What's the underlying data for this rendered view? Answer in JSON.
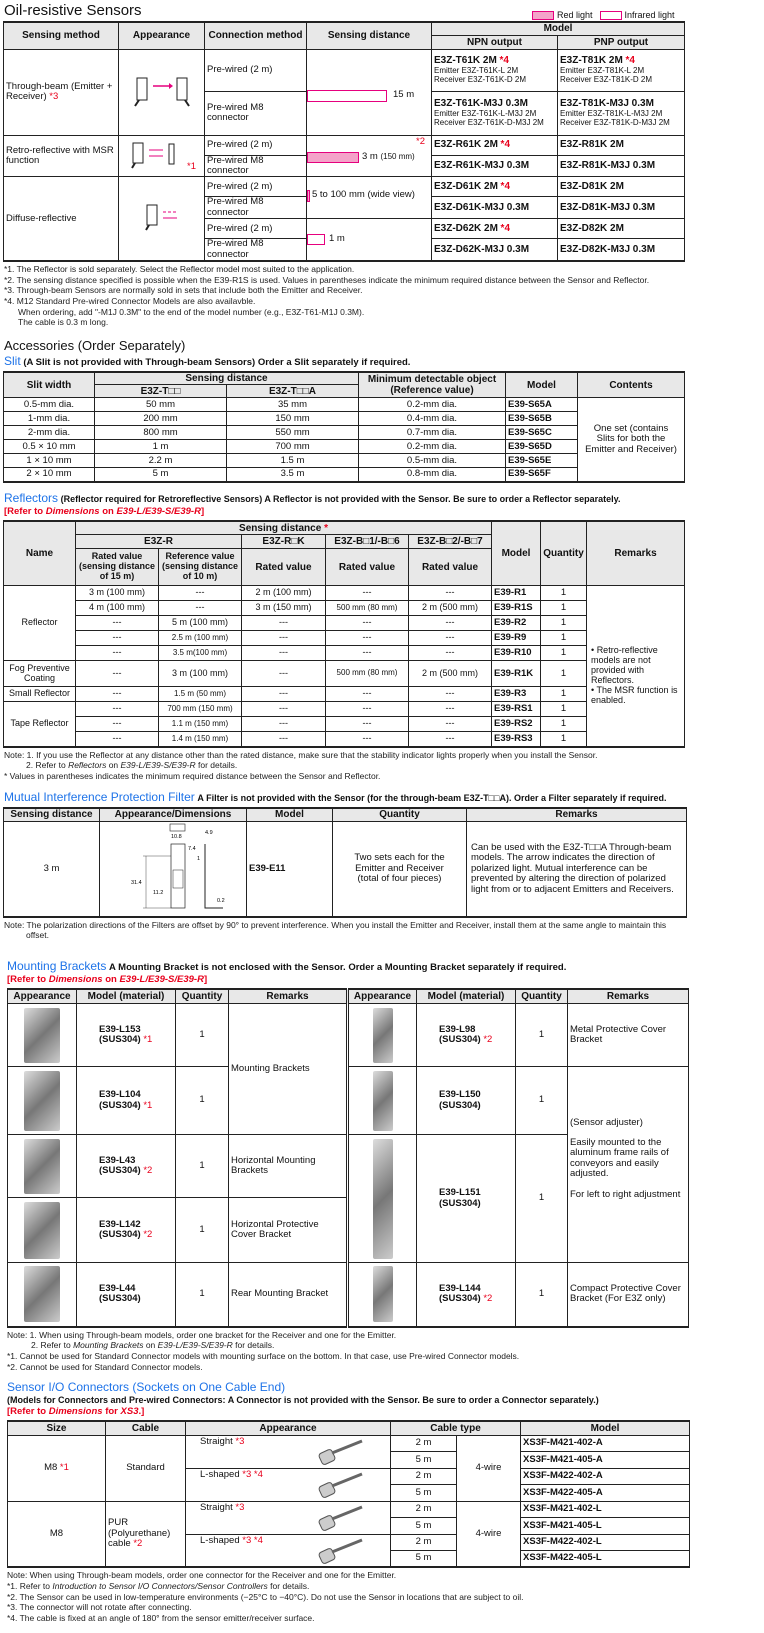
{
  "oil": {
    "title": "Oil-resistive Sensors",
    "legend": {
      "red": "Red light",
      "infrared": "Infrared light",
      "red_color": "#f4a3c9",
      "border_color": "#e6007e"
    },
    "headers": {
      "method": "Sensing method",
      "appearance": "Appearance",
      "connection": "Connection method",
      "distance": "Sensing distance",
      "model": "Model",
      "npn": "NPN output",
      "pnp": "PNP output"
    },
    "through": {
      "method": "Through-beam (Emitter + Receiver)",
      "mark": "*3",
      "c1": "Pre-wired (2 m)",
      "c2": "Pre-wired M8 connector",
      "dist": "15 m",
      "npn1": "E3Z-T61K 2M",
      "npn1m": "*4",
      "npn1e": "Emitter   E3Z-T61K-L 2M",
      "npn1r": "Receiver  E3Z-T61K-D 2M",
      "pnp1": "E3Z-T81K 2M",
      "pnp1m": "*4",
      "pnp1e": "Emitter   E3Z-T81K-L 2M",
      "pnp1r": "Receiver  E3Z-T81K-D 2M",
      "npn2": "E3Z-T61K-M3J 0.3M",
      "npn2e": "Emitter   E3Z-T61K-L-M3J 2M",
      "npn2r": "Receiver  E3Z-T61K-D-M3J 2M",
      "pnp2": "E3Z-T81K-M3J 0.3M",
      "pnp2e": "Emitter   E3Z-T81K-L-M3J 2M",
      "pnp2r": "Receiver  E3Z-T81K-D-M3J 2M"
    },
    "retro": {
      "method": "Retro-reflective with MSR function",
      "mark": "*1",
      "c1": "Pre-wired (2 m)",
      "c2": "Pre-wired M8 connector",
      "dist_mark": "*2",
      "dist": "3 m",
      "dist_min": "(150 mm)",
      "npn1": "E3Z-R61K 2M",
      "npn1m": "*4",
      "pnp1": "E3Z-R81K 2M",
      "npn2": "E3Z-R61K-M3J 0.3M",
      "pnp2": "E3Z-R81K-M3J 0.3M"
    },
    "diffuse": {
      "method": "Diffuse-reflective",
      "c": [
        "Pre-wired (2 m)",
        "Pre-wired M8 connector",
        "Pre-wired (2 m)",
        "Pre-wired M8 connector"
      ],
      "dist1": "5 to 100 mm (wide view)",
      "dist2": "1 m",
      "npn": [
        "E3Z-D61K 2M",
        "E3Z-D61K-M3J 0.3M",
        "E3Z-D62K 2M",
        "E3Z-D62K-M3J 0.3M"
      ],
      "npn_marks": [
        "*4",
        "",
        "*4",
        ""
      ],
      "pnp": [
        "E3Z-D81K 2M",
        "E3Z-D81K-M3J 0.3M",
        "E3Z-D82K 2M",
        "E3Z-D82K-M3J 0.3M"
      ]
    },
    "notes": [
      "*1. The Reflector is sold separately. Select the Reflector model most suited to the application.",
      "*2. The sensing distance specified is possible when the E39-R1S is used. Values in parentheses indicate the minimum required distance between the Sensor and Reflector.",
      "*3. Through-beam Sensors are normally sold in sets that include both the Emitter and Receiver.",
      "*4. M12 Standard Pre-wired Connector Models are also availavble.",
      "When ordering, add \"-M1J 0.3M\" to the end of the model number (e.g., E3Z-T61-M1J 0.3M).",
      "The cable is 0.3 m long."
    ]
  },
  "accessories": {
    "title": "Accessories (Order Separately)"
  },
  "slit": {
    "title": "Slit",
    "desc": "(A Slit is not provided with Through-beam Sensors) Order a Slit separately if required.",
    "headers": {
      "width": "Slit width",
      "distance": "Sensing distance",
      "t1": "E3Z-T□□",
      "t2": "E3Z-T□□A",
      "min": "Minimum detectable object (Reference value)",
      "model": "Model",
      "contents": "Contents"
    },
    "rows": [
      [
        "0.5-mm dia.",
        "50 mm",
        "35 mm",
        "0.2-mm dia.",
        "E39-S65A"
      ],
      [
        "1-mm dia.",
        "200 mm",
        "150 mm",
        "0.4-mm dia.",
        "E39-S65B"
      ],
      [
        "2-mm dia.",
        "800 mm",
        "550 mm",
        "0.7-mm dia.",
        "E39-S65C"
      ],
      [
        "0.5 × 10 mm",
        "1 m",
        "700 mm",
        "0.2-mm dia.",
        "E39-S65D"
      ],
      [
        "1 × 10 mm",
        "2.2 m",
        "1.5 m",
        "0.5-mm dia.",
        "E39-S65E"
      ],
      [
        "2 × 10 mm",
        "5 m",
        "3.5 m",
        "0.8-mm dia.",
        "E39-S65F"
      ]
    ],
    "contents": "One set (contains Slits for both the Emitter and Receiver)"
  },
  "reflectors": {
    "title": "Reflectors",
    "desc": "(Reflector required for Retroreflective Sensors) A Reflector is not provided with the Sensor. Be sure to order a Reflector separately.",
    "refer": {
      "a": "[Refer to ",
      "b": "Dimensions",
      "c": " on ",
      "d": "E39-L/E39-S/E39-R",
      "e": "]"
    },
    "headers": {
      "name": "Name",
      "distance": "Sensing distance",
      "dist_mark": "*",
      "e3zr": "E3Z-R",
      "e3zrk": "E3Z-R□K",
      "b1": "E3Z-B□1/-B□6",
      "b2": "E3Z-B□2/-B□7",
      "rated15": "Rated value (sensing distance of 15 m)",
      "ref10": "Reference value (sensing distance of 10 m)",
      "rated": "Rated value",
      "model": "Model",
      "qty": "Quantity",
      "remarks": "Remarks"
    },
    "names": [
      "Reflector",
      "Fog Preventive Coating",
      "Small Reflector",
      "Tape Reflector"
    ],
    "rows": [
      [
        "3 m (100 mm)",
        "---",
        "2 m (100 mm)",
        "---",
        "---",
        "E39-R1",
        "1"
      ],
      [
        "4 m (100 mm)",
        "---",
        "3 m (150 mm)",
        "500 mm (80 mm)",
        "2 m (500 mm)",
        "E39-R1S",
        "1"
      ],
      [
        "---",
        "5 m (100 mm)",
        "---",
        "---",
        "---",
        "E39-R2",
        "1"
      ],
      [
        "---",
        "2.5 m (100 mm)",
        "---",
        "---",
        "---",
        "E39-R9",
        "1"
      ],
      [
        "---",
        "3.5 m(100 mm)",
        "---",
        "---",
        "---",
        "E39-R10",
        "1"
      ],
      [
        "---",
        "3 m (100 mm)",
        "---",
        "500 mm (80 mm)",
        "2 m (500 mm)",
        "E39-R1K",
        "1"
      ],
      [
        "---",
        "1.5 m (50 mm)",
        "---",
        "---",
        "---",
        "E39-R3",
        "1"
      ],
      [
        "---",
        "700 mm (150 mm)",
        "---",
        "---",
        "---",
        "E39-RS1",
        "1"
      ],
      [
        "---",
        "1.1 m (150 mm)",
        "---",
        "---",
        "---",
        "E39-RS2",
        "1"
      ],
      [
        "---",
        "1.4 m (150 mm)",
        "---",
        "---",
        "---",
        "E39-RS3",
        "1"
      ]
    ],
    "remarks": [
      "Retro-reflective models are not provided with Reflectors.",
      "The MSR function is enabled."
    ],
    "notes": [
      "Note: 1. If you use the Reflector at any distance other than the rated distance, make sure that the stability indicator lights properly when you install the Sensor.",
      "2. Refer to ",
      "Reflectors",
      " on ",
      "E39-L/E39-S/E39-R",
      " for details.",
      "* Values in parentheses indicates the minimum required distance between the Sensor and Reflector."
    ]
  },
  "filter": {
    "title": "Mutual Interference Protection Filter",
    "desc": "A Filter is not provided with the Sensor (for the through-beam E3Z-T□□A). Order a Filter separately if required.",
    "headers": {
      "distance": "Sensing distance",
      "appearance": "Appearance/Dimensions",
      "model": "Model",
      "qty": "Quantity",
      "remarks": "Remarks"
    },
    "distance": "3 m",
    "model": "E39-E11",
    "qty": "Two sets each for the Emitter and Receiver (total of four pieces)",
    "remarks": "Can be used with the E3Z-T□□A Through-beam models. The arrow indicates the direction of polarized light. Mutual interference can be prevented by altering the direction of polarized light from or to adjacent Emitters and Receivers.",
    "dims": [
      "10.8",
      "7.4",
      "4.9",
      "1",
      "31.4",
      "11.2",
      "0.2"
    ],
    "note": "Note: The polarization directions of the Filters are offset by 90° to prevent interference. When you install the Emitter and Receiver, install them at the same angle to maintain this offset."
  },
  "brackets": {
    "title": "Mounting Brackets",
    "desc": "A Mounting Bracket is not enclosed with the Sensor. Order a Mounting Bracket separately if required.",
    "headers": {
      "appearance": "Appearance",
      "model": "Model (material)",
      "qty": "Quantity",
      "remarks": "Remarks"
    },
    "left": [
      {
        "model": "E39-L153",
        "mat": "(SUS304)",
        "mark": "*1",
        "qty": "1"
      },
      {
        "model": "E39-L104",
        "mat": "(SUS304)",
        "mark": "*1",
        "qty": "1"
      },
      {
        "model": "E39-L43",
        "mat": "(SUS304)",
        "mark": "*2",
        "qty": "1",
        "rem": "Horizontal Mounting Brackets"
      },
      {
        "model": "E39-L142",
        "mat": "(SUS304)",
        "mark": "*2",
        "qty": "1",
        "rem": "Horizontal Protective Cover Bracket"
      },
      {
        "model": "E39-L44",
        "mat": "(SUS304)",
        "mark": "",
        "qty": "1",
        "rem": "Rear Mounting Bracket"
      }
    ],
    "left_shared_remark": "Mounting Brackets",
    "right": [
      {
        "model": "E39-L98",
        "mat": "(SUS304)",
        "mark": "*2",
        "qty": "1",
        "rem": "Metal Protective Cover Bracket"
      },
      {
        "model": "E39-L150",
        "mat": "(SUS304)",
        "mark": "",
        "qty": "1",
        "rem": "(Sensor adjuster)"
      },
      {
        "model": "E39-L151",
        "mat": "(SUS304)",
        "mark": "",
        "qty": "1",
        "rem": "Easily mounted to the aluminum frame rails of conveyors and easily adjusted.",
        "rem2": "For left to right adjustment"
      },
      {
        "model": "E39-L144",
        "mat": "(SUS304)",
        "mark": "*2",
        "qty": "1",
        "rem": "Compact Protective Cover Bracket (For E3Z only)"
      }
    ],
    "notes": [
      "Note: 1. When using Through-beam models, order one bracket for the Receiver and one for the Emitter.",
      "2. Refer to ",
      "Mounting Brackets",
      " on ",
      "E39-L/E39-S/E39-R",
      " for details.",
      "*1. Cannot be used for Standard Connector models with mounting surface on the bottom. In that case, use Pre-wired Connector models.",
      "*2. Cannot be used for Standard Connector models."
    ]
  },
  "connectors": {
    "title": "Sensor I/O Connectors (Sockets on One Cable End)",
    "desc": "(Models for Connectors and Pre-wired Connectors: A Connector is not provided with the Sensor. Be sure to order a Connector separately.)",
    "refer": {
      "a": "[Refer to ",
      "b": "Dimensions",
      "c": " for ",
      "d": "XS3",
      "e": ".]"
    },
    "headers": {
      "size": "Size",
      "cable": "Cable",
      "appearance": "Appearance",
      "type": "Cable type",
      "model": "Model"
    },
    "groups": [
      {
        "size": "M8",
        "size_mark": "*1",
        "cable": "Standard",
        "cable_mark": "",
        "straight": "Straight",
        "straight_mark": "*3",
        "lshaped": "L-shaped",
        "l_mark": "*3 *4",
        "wire": "4-wire",
        "lengths": [
          "2 m",
          "5 m",
          "2 m",
          "5 m"
        ],
        "models": [
          "XS3F-M421-402-A",
          "XS3F-M421-405-A",
          "XS3F-M422-402-A",
          "XS3F-M422-405-A"
        ]
      },
      {
        "size": "M8",
        "size_mark": "",
        "cable": "PUR (Polyurethane) cable",
        "cable_mark": "*2",
        "straight": "Straight",
        "straight_mark": "*3",
        "lshaped": "L-shaped",
        "l_mark": "*3 *4",
        "wire": "4-wire",
        "lengths": [
          "2 m",
          "5 m",
          "2 m",
          "5 m"
        ],
        "models": [
          "XS3F-M421-402-L",
          "XS3F-M421-405-L",
          "XS3F-M422-402-L",
          "XS3F-M422-405-L"
        ]
      }
    ],
    "notes": [
      "Note: When using Through-beam models, order one connector for the Receiver and one for the Emitter.",
      "*1. Refer to ",
      "Introduction to Sensor I/O Connectors/Sensor Controllers",
      " for details.",
      "*2. The Sensor can be used in low-temperature environments (−25°C to −40°C). Do not use the Sensor in locations that are subject to oil.",
      "*3. The connector will not rotate after connecting.",
      "*4. The cable is fixed at an angle of 180° from the sensor emitter/receiver surface."
    ]
  }
}
